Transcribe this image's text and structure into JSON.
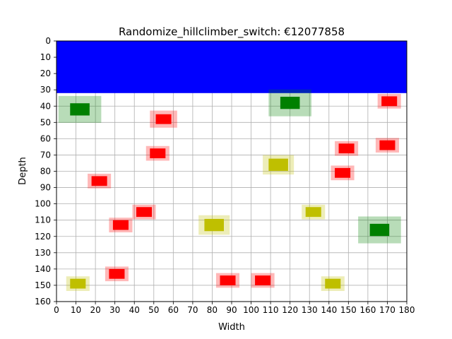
{
  "chart_data": {
    "type": "scatter",
    "title": "Randomize_hillclimber_switch: €12077858",
    "xlabel": "Width",
    "ylabel": "Depth",
    "xlim": [
      0,
      180
    ],
    "ylim": [
      160,
      0
    ],
    "y_inverted": true,
    "grid": true,
    "x_ticks": [
      0,
      10,
      20,
      30,
      40,
      50,
      60,
      70,
      80,
      90,
      100,
      110,
      120,
      130,
      140,
      150,
      160,
      170,
      180
    ],
    "y_ticks": [
      0,
      10,
      20,
      30,
      40,
      50,
      60,
      70,
      80,
      90,
      100,
      110,
      120,
      130,
      140,
      150,
      160
    ],
    "colors": {
      "red": "#ff0000",
      "olive": "#bfbf00",
      "green": "#008000",
      "blue": "#0000ff"
    },
    "regions": [
      {
        "color": "blue",
        "x0": 0,
        "x1": 180,
        "y0": 0,
        "y1": 32
      }
    ],
    "items": [
      {
        "color": "green",
        "x": 12,
        "y": 42,
        "size": 10,
        "halo": 22
      },
      {
        "color": "green",
        "x": 120,
        "y": 38,
        "size": 10,
        "halo": 22
      },
      {
        "color": "green",
        "x": 166,
        "y": 116,
        "size": 10,
        "halo": 22
      },
      {
        "color": "red",
        "x": 55,
        "y": 48,
        "size": 8,
        "halo": 14
      },
      {
        "color": "red",
        "x": 171,
        "y": 37,
        "size": 8,
        "halo": 12
      },
      {
        "color": "red",
        "x": 52,
        "y": 69,
        "size": 8,
        "halo": 12
      },
      {
        "color": "red",
        "x": 149,
        "y": 66,
        "size": 8,
        "halo": 12
      },
      {
        "color": "red",
        "x": 170,
        "y": 64,
        "size": 8,
        "halo": 12
      },
      {
        "color": "red",
        "x": 147,
        "y": 81,
        "size": 8,
        "halo": 12
      },
      {
        "color": "red",
        "x": 22,
        "y": 86,
        "size": 8,
        "halo": 12
      },
      {
        "color": "red",
        "x": 45,
        "y": 105,
        "size": 8,
        "halo": 12
      },
      {
        "color": "red",
        "x": 33,
        "y": 113,
        "size": 8,
        "halo": 12
      },
      {
        "color": "red",
        "x": 31,
        "y": 143,
        "size": 8,
        "halo": 12
      },
      {
        "color": "red",
        "x": 88,
        "y": 147,
        "size": 8,
        "halo": 12
      },
      {
        "color": "red",
        "x": 106,
        "y": 147,
        "size": 8,
        "halo": 12
      },
      {
        "color": "olive",
        "x": 114,
        "y": 76,
        "size": 10,
        "halo": 16
      },
      {
        "color": "olive",
        "x": 81,
        "y": 113,
        "size": 10,
        "halo": 16
      },
      {
        "color": "olive",
        "x": 132,
        "y": 105,
        "size": 8,
        "halo": 12
      },
      {
        "color": "olive",
        "x": 11,
        "y": 149,
        "size": 8,
        "halo": 12
      },
      {
        "color": "olive",
        "x": 142,
        "y": 149,
        "size": 8,
        "halo": 12
      }
    ]
  }
}
